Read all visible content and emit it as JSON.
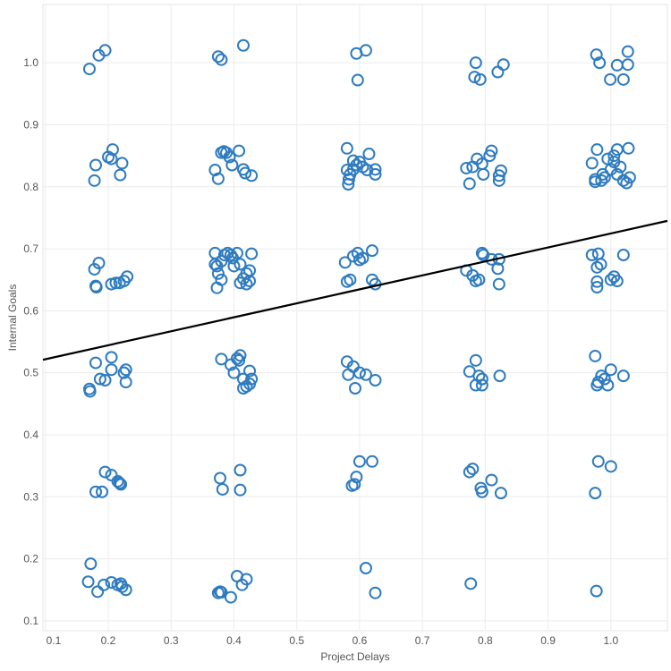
{
  "chart_data": {
    "type": "scatter",
    "title": "",
    "xlabel": "Project Delays",
    "ylabel": "Internal Goals",
    "xlim": [
      0.096,
      1.09
    ],
    "ylim": [
      0.084,
      1.094
    ],
    "xticks": [
      "0.1",
      "0.2",
      "0.3",
      "0.4",
      "0.5",
      "0.6",
      "0.7",
      "0.8",
      "0.9",
      "1.0"
    ],
    "yticks": [
      "0.1",
      "0.2",
      "0.3",
      "0.4",
      "0.5",
      "0.6",
      "0.7",
      "0.8",
      "0.9",
      "1.0"
    ],
    "grid": true,
    "marker": "hollow-circle",
    "marker_color": "#2e7bbf",
    "trend_line": {
      "color": "#000000",
      "from": [
        0.096,
        0.521
      ],
      "to": [
        1.09,
        0.745
      ]
    },
    "points": [
      [
        0.17,
        0.99
      ],
      [
        0.185,
        1.012
      ],
      [
        0.195,
        1.02
      ],
      [
        0.375,
        1.01
      ],
      [
        0.38,
        1.005
      ],
      [
        0.415,
        1.028
      ],
      [
        0.595,
        1.015
      ],
      [
        0.61,
        1.02
      ],
      [
        0.597,
        0.972
      ],
      [
        0.785,
        1.0
      ],
      [
        0.783,
        0.977
      ],
      [
        0.792,
        0.973
      ],
      [
        0.82,
        0.985
      ],
      [
        0.829,
        0.997
      ],
      [
        0.977,
        1.013
      ],
      [
        0.982,
        1.0
      ],
      [
        0.999,
        0.973
      ],
      [
        1.01,
        0.996
      ],
      [
        1.02,
        0.973
      ],
      [
        1.027,
        1.018
      ],
      [
        1.027,
        0.997
      ],
      [
        0.178,
        0.81
      ],
      [
        0.18,
        0.835
      ],
      [
        0.2,
        0.848
      ],
      [
        0.207,
        0.86
      ],
      [
        0.205,
        0.845
      ],
      [
        0.222,
        0.838
      ],
      [
        0.219,
        0.819
      ],
      [
        0.37,
        0.827
      ],
      [
        0.375,
        0.813
      ],
      [
        0.38,
        0.855
      ],
      [
        0.384,
        0.857
      ],
      [
        0.388,
        0.855
      ],
      [
        0.393,
        0.848
      ],
      [
        0.397,
        0.835
      ],
      [
        0.408,
        0.858
      ],
      [
        0.415,
        0.828
      ],
      [
        0.418,
        0.822
      ],
      [
        0.428,
        0.818
      ],
      [
        0.58,
        0.862
      ],
      [
        0.58,
        0.827
      ],
      [
        0.585,
        0.82
      ],
      [
        0.583,
        0.812
      ],
      [
        0.582,
        0.804
      ],
      [
        0.59,
        0.842
      ],
      [
        0.595,
        0.835
      ],
      [
        0.59,
        0.828
      ],
      [
        0.6,
        0.84
      ],
      [
        0.605,
        0.832
      ],
      [
        0.615,
        0.853
      ],
      [
        0.612,
        0.827
      ],
      [
        0.625,
        0.828
      ],
      [
        0.625,
        0.82
      ],
      [
        0.775,
        0.805
      ],
      [
        0.77,
        0.83
      ],
      [
        0.78,
        0.832
      ],
      [
        0.787,
        0.845
      ],
      [
        0.795,
        0.837
      ],
      [
        0.81,
        0.858
      ],
      [
        0.807,
        0.85
      ],
      [
        0.797,
        0.82
      ],
      [
        0.825,
        0.826
      ],
      [
        0.822,
        0.818
      ],
      [
        0.822,
        0.81
      ],
      [
        0.97,
        0.838
      ],
      [
        0.978,
        0.86
      ],
      [
        0.975,
        0.812
      ],
      [
        0.975,
        0.808
      ],
      [
        0.985,
        0.81
      ],
      [
        0.987,
        0.82
      ],
      [
        0.99,
        0.815
      ],
      [
        0.995,
        0.845
      ],
      [
        1.0,
        0.828
      ],
      [
        1.005,
        0.85
      ],
      [
        1.005,
        0.84
      ],
      [
        1.01,
        0.86
      ],
      [
        1.01,
        0.82
      ],
      [
        1.015,
        0.832
      ],
      [
        1.02,
        0.81
      ],
      [
        1.028,
        0.862
      ],
      [
        1.03,
        0.815
      ],
      [
        1.025,
        0.806
      ],
      [
        0.178,
        0.667
      ],
      [
        0.185,
        0.677
      ],
      [
        0.18,
        0.64
      ],
      [
        0.181,
        0.638
      ],
      [
        0.205,
        0.643
      ],
      [
        0.212,
        0.645
      ],
      [
        0.218,
        0.645
      ],
      [
        0.225,
        0.648
      ],
      [
        0.23,
        0.655
      ],
      [
        0.37,
        0.693
      ],
      [
        0.37,
        0.675
      ],
      [
        0.373,
        0.672
      ],
      [
        0.375,
        0.66
      ],
      [
        0.38,
        0.65
      ],
      [
        0.373,
        0.637
      ],
      [
        0.38,
        0.68
      ],
      [
        0.385,
        0.69
      ],
      [
        0.39,
        0.693
      ],
      [
        0.395,
        0.69
      ],
      [
        0.398,
        0.685
      ],
      [
        0.4,
        0.672
      ],
      [
        0.405,
        0.693
      ],
      [
        0.41,
        0.675
      ],
      [
        0.41,
        0.645
      ],
      [
        0.415,
        0.652
      ],
      [
        0.42,
        0.643
      ],
      [
        0.425,
        0.648
      ],
      [
        0.425,
        0.665
      ],
      [
        0.428,
        0.692
      ],
      [
        0.42,
        0.66
      ],
      [
        0.577,
        0.678
      ],
      [
        0.58,
        0.647
      ],
      [
        0.585,
        0.65
      ],
      [
        0.59,
        0.688
      ],
      [
        0.597,
        0.693
      ],
      [
        0.605,
        0.685
      ],
      [
        0.6,
        0.682
      ],
      [
        0.62,
        0.697
      ],
      [
        0.62,
        0.65
      ],
      [
        0.625,
        0.643
      ],
      [
        0.77,
        0.665
      ],
      [
        0.78,
        0.657
      ],
      [
        0.785,
        0.648
      ],
      [
        0.79,
        0.65
      ],
      [
        0.795,
        0.693
      ],
      [
        0.797,
        0.69
      ],
      [
        0.81,
        0.683
      ],
      [
        0.82,
        0.668
      ],
      [
        0.822,
        0.683
      ],
      [
        0.822,
        0.643
      ],
      [
        0.97,
        0.69
      ],
      [
        0.98,
        0.692
      ],
      [
        0.978,
        0.67
      ],
      [
        0.984,
        0.675
      ],
      [
        0.978,
        0.647
      ],
      [
        0.978,
        0.638
      ],
      [
        1.0,
        0.65
      ],
      [
        1.005,
        0.655
      ],
      [
        1.01,
        0.648
      ],
      [
        1.02,
        0.69
      ],
      [
        0.17,
        0.474
      ],
      [
        0.171,
        0.47
      ],
      [
        0.18,
        0.516
      ],
      [
        0.187,
        0.49
      ],
      [
        0.195,
        0.488
      ],
      [
        0.205,
        0.505
      ],
      [
        0.205,
        0.525
      ],
      [
        0.225,
        0.5
      ],
      [
        0.228,
        0.505
      ],
      [
        0.228,
        0.485
      ],
      [
        0.38,
        0.522
      ],
      [
        0.395,
        0.513
      ],
      [
        0.405,
        0.523
      ],
      [
        0.41,
        0.528
      ],
      [
        0.408,
        0.52
      ],
      [
        0.4,
        0.5
      ],
      [
        0.415,
        0.49
      ],
      [
        0.42,
        0.478
      ],
      [
        0.415,
        0.475
      ],
      [
        0.425,
        0.482
      ],
      [
        0.425,
        0.503
      ],
      [
        0.428,
        0.49
      ],
      [
        0.58,
        0.518
      ],
      [
        0.582,
        0.497
      ],
      [
        0.59,
        0.51
      ],
      [
        0.593,
        0.475
      ],
      [
        0.6,
        0.5
      ],
      [
        0.61,
        0.497
      ],
      [
        0.625,
        0.488
      ],
      [
        0.775,
        0.502
      ],
      [
        0.785,
        0.52
      ],
      [
        0.785,
        0.48
      ],
      [
        0.79,
        0.495
      ],
      [
        0.795,
        0.48
      ],
      [
        0.795,
        0.49
      ],
      [
        0.823,
        0.495
      ],
      [
        0.975,
        0.527
      ],
      [
        0.978,
        0.48
      ],
      [
        0.98,
        0.485
      ],
      [
        0.99,
        0.49
      ],
      [
        0.985,
        0.495
      ],
      [
        0.995,
        0.48
      ],
      [
        1.0,
        0.505
      ],
      [
        1.02,
        0.495
      ],
      [
        0.18,
        0.308
      ],
      [
        0.19,
        0.308
      ],
      [
        0.195,
        0.34
      ],
      [
        0.205,
        0.335
      ],
      [
        0.215,
        0.325
      ],
      [
        0.218,
        0.322
      ],
      [
        0.22,
        0.32
      ],
      [
        0.378,
        0.33
      ],
      [
        0.382,
        0.312
      ],
      [
        0.41,
        0.343
      ],
      [
        0.41,
        0.311
      ],
      [
        0.588,
        0.318
      ],
      [
        0.595,
        0.332
      ],
      [
        0.6,
        0.357
      ],
      [
        0.62,
        0.357
      ],
      [
        0.592,
        0.32
      ],
      [
        0.775,
        0.34
      ],
      [
        0.78,
        0.345
      ],
      [
        0.793,
        0.314
      ],
      [
        0.795,
        0.308
      ],
      [
        0.81,
        0.327
      ],
      [
        0.825,
        0.306
      ],
      [
        0.975,
        0.306
      ],
      [
        0.98,
        0.357
      ],
      [
        1.0,
        0.349
      ],
      [
        0.168,
        0.163
      ],
      [
        0.172,
        0.192
      ],
      [
        0.183,
        0.147
      ],
      [
        0.193,
        0.158
      ],
      [
        0.205,
        0.162
      ],
      [
        0.215,
        0.158
      ],
      [
        0.22,
        0.16
      ],
      [
        0.222,
        0.155
      ],
      [
        0.228,
        0.15
      ],
      [
        0.375,
        0.145
      ],
      [
        0.378,
        0.147
      ],
      [
        0.38,
        0.146
      ],
      [
        0.395,
        0.138
      ],
      [
        0.405,
        0.172
      ],
      [
        0.413,
        0.158
      ],
      [
        0.42,
        0.167
      ],
      [
        0.61,
        0.185
      ],
      [
        0.625,
        0.145
      ],
      [
        0.777,
        0.16
      ],
      [
        0.977,
        0.148
      ]
    ]
  }
}
